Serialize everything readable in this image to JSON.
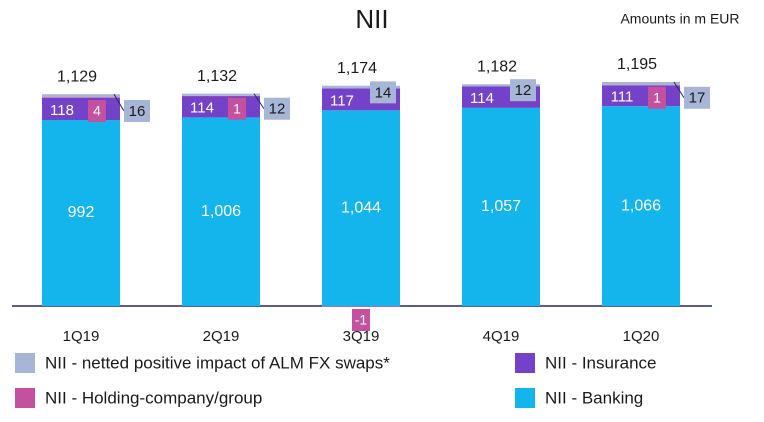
{
  "chart_data": {
    "type": "stacked-bar",
    "title": "NII",
    "subtitle": "Amounts in m EUR",
    "categories": [
      "1Q19",
      "2Q19",
      "3Q19",
      "4Q19",
      "1Q20"
    ],
    "series": [
      {
        "name": "NII - Banking",
        "color": "#14b4ec",
        "values": [
          992,
          1006,
          1044,
          1057,
          1066
        ],
        "value_labels": [
          "992",
          "1,006",
          "1,044",
          "1,057",
          "1,066"
        ]
      },
      {
        "name": "NII - Insurance",
        "color": "#7442c8",
        "values": [
          118,
          114,
          117,
          114,
          111
        ]
      },
      {
        "name": "NII - Holding-company/group",
        "color": "#c4519f",
        "values": [
          4,
          1,
          -1,
          null,
          1
        ]
      },
      {
        "name": "NII - netted positive impact of ALM FX swaps*",
        "color": "#a7b6d6",
        "values": [
          16,
          12,
          14,
          12,
          17
        ]
      }
    ],
    "totals": {
      "values": [
        1129,
        1132,
        1174,
        1182,
        1195
      ],
      "value_labels": [
        "1,129",
        "1,132",
        "1,174",
        "1,182",
        "1,195"
      ]
    }
  }
}
